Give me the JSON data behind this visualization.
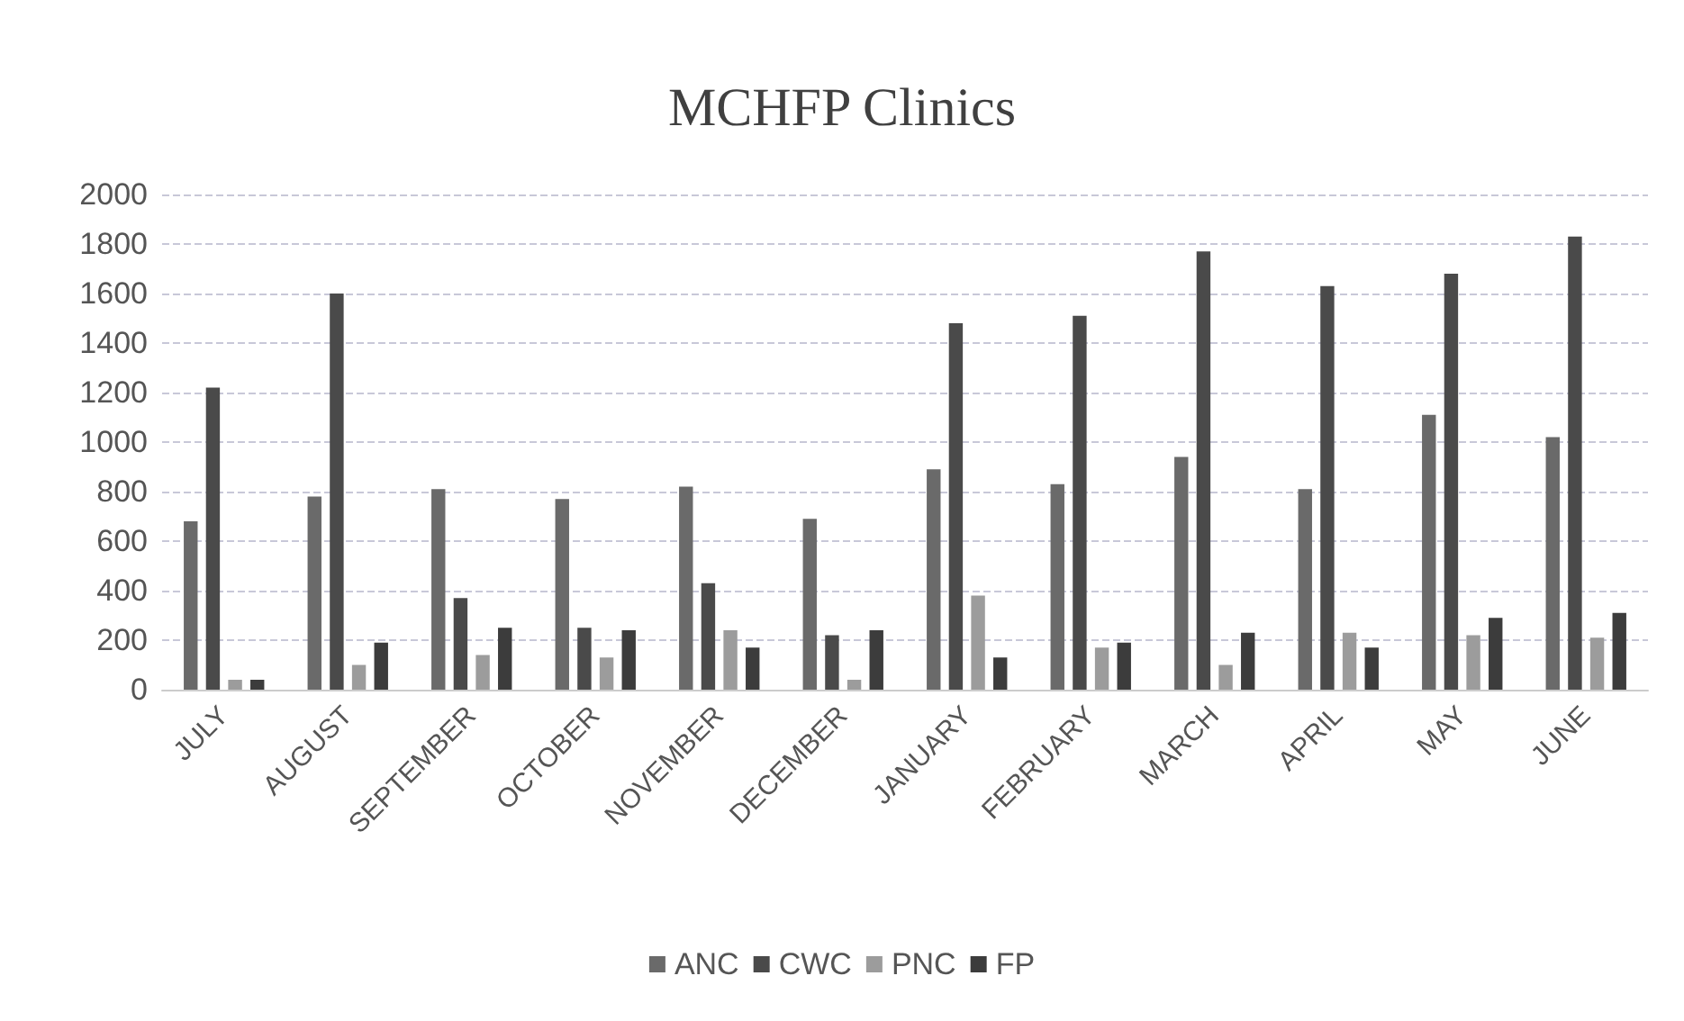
{
  "chart_data": {
    "type": "bar",
    "title": "MCHFP Clinics",
    "categories": [
      "JULY",
      "AUGUST",
      "SEPTEMBER",
      "OCTOBER",
      "NOVEMBER",
      "DECEMBER",
      "JANUARY",
      "FEBRUARY",
      "MARCH",
      "APRIL",
      "MAY",
      "JUNE"
    ],
    "series": [
      {
        "name": "ANC",
        "color": "#6a6a6a",
        "values": [
          680,
          780,
          810,
          770,
          820,
          690,
          890,
          830,
          940,
          810,
          1110,
          1020
        ]
      },
      {
        "name": "CWC",
        "color": "#4a4a4a",
        "values": [
          1220,
          1600,
          370,
          250,
          430,
          220,
          1480,
          1510,
          1770,
          1630,
          1680,
          1830
        ]
      },
      {
        "name": "PNC",
        "color": "#9c9c9c",
        "values": [
          40,
          100,
          140,
          130,
          240,
          40,
          380,
          170,
          100,
          230,
          220,
          210
        ]
      },
      {
        "name": "FP",
        "color": "#3c3c3c",
        "values": [
          40,
          190,
          250,
          240,
          170,
          240,
          130,
          190,
          230,
          170,
          290,
          310
        ]
      }
    ],
    "ylim": [
      0,
      2000
    ],
    "yticks": [
      0,
      200,
      400,
      600,
      800,
      1000,
      1200,
      1400,
      1600,
      1800,
      2000
    ],
    "grid": "y",
    "legend": "bottom"
  }
}
